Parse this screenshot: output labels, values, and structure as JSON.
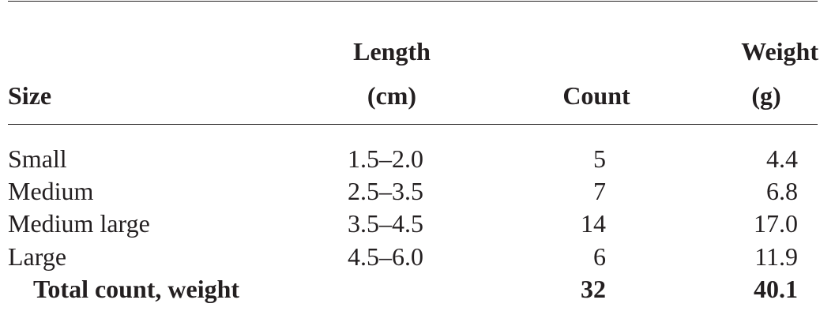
{
  "table": {
    "headers": {
      "size": "Size",
      "length_line1": "Length",
      "length_line2": "(cm)",
      "count": "Count",
      "weight_line1": "Weight",
      "weight_line2": "(g)"
    },
    "rows": [
      {
        "size": "Small",
        "length": "1.5–2.0",
        "count": "5",
        "weight": "4.4"
      },
      {
        "size": "Medium",
        "length": "2.5–3.5",
        "count": "7",
        "weight": "6.8"
      },
      {
        "size": "Medium large",
        "length": "3.5–4.5",
        "count": "14",
        "weight": "17.0"
      },
      {
        "size": "Large",
        "length": "4.5–6.0",
        "count": "6",
        "weight": "11.9"
      }
    ],
    "total": {
      "label": "Total count, weight",
      "count": "32",
      "weight": "40.1"
    }
  }
}
